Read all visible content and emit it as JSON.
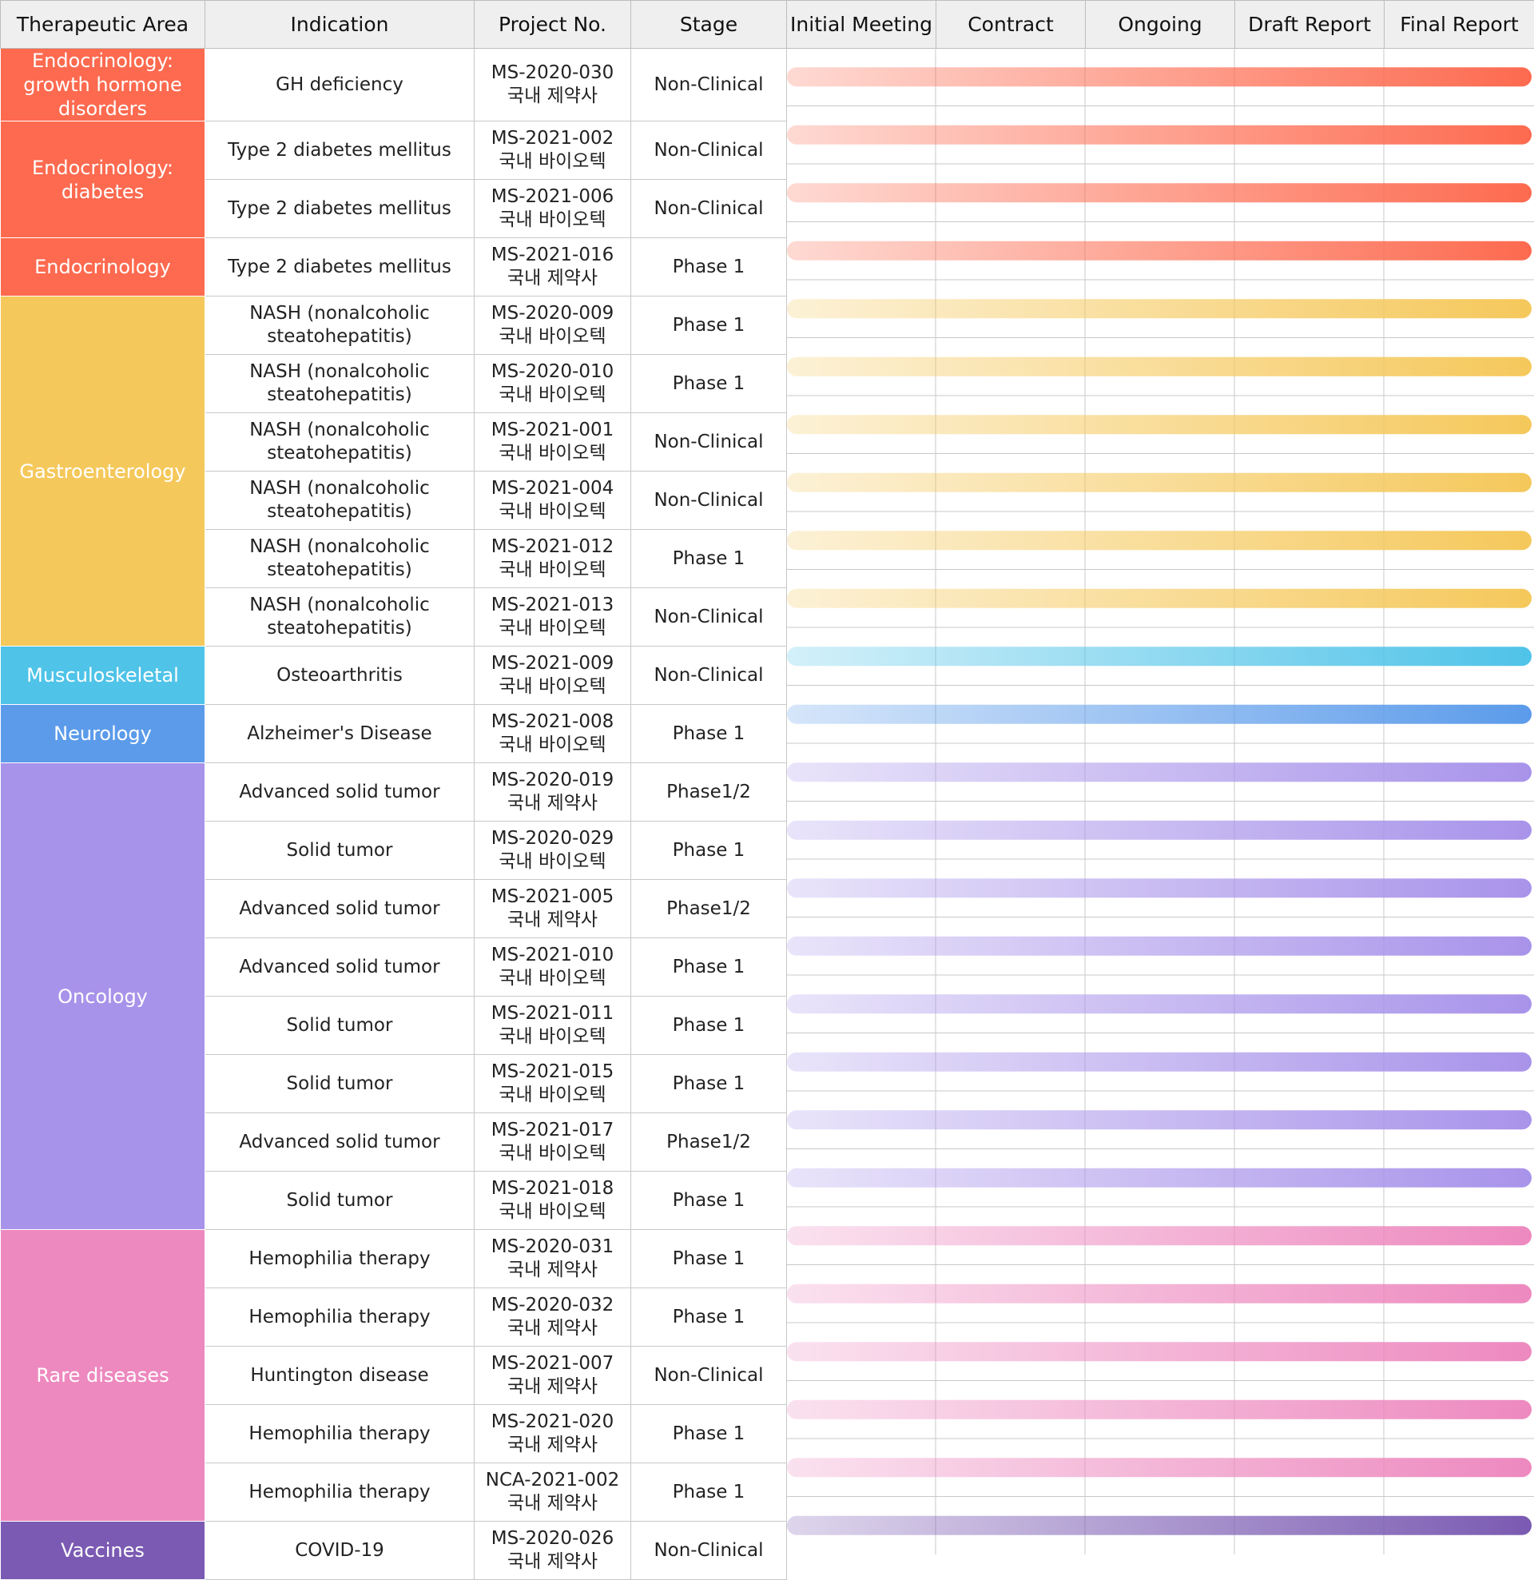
{
  "chart_data": {
    "type": "bar",
    "columns": [
      "Therapeutic Area",
      "Indication",
      "Project No.",
      "Stage"
    ],
    "phases": [
      "Initial Meeting",
      "Contract",
      "Ongoing",
      "Draft Report",
      "Final Report"
    ],
    "areas": [
      {
        "name": "Endocrinology: growth hormone disorders",
        "color": "#fd6a4f",
        "rows": 1
      },
      {
        "name": "Endocrinology: diabetes",
        "color": "#fd6a4f",
        "rows": 2
      },
      {
        "name": "Endocrinology",
        "color": "#fd6a4f",
        "rows": 1
      },
      {
        "name": "Gastroenterology",
        "color": "#f5c85b",
        "rows": 6
      },
      {
        "name": "Musculoskeletal",
        "color": "#4fc3e8",
        "rows": 1
      },
      {
        "name": "Neurology",
        "color": "#5b9bea",
        "rows": 1
      },
      {
        "name": "Oncology",
        "color": "#a893ea",
        "rows": 8
      },
      {
        "name": "Rare diseases",
        "color": "#ed89bf",
        "rows": 5
      },
      {
        "name": "Vaccines",
        "color": "#7a5ab2",
        "rows": 1
      }
    ],
    "rows": [
      {
        "indication": "GH deficiency",
        "project_no": "MS-2020-030",
        "sponsor": "국내 제약사",
        "stage": "Non-Clinical",
        "progress": "Final Report",
        "area": 0
      },
      {
        "indication": "Type 2 diabetes mellitus",
        "project_no": "MS-2021-002",
        "sponsor": "국내 바이오텍",
        "stage": "Non-Clinical",
        "progress": "Final Report",
        "area": 1
      },
      {
        "indication": "Type 2 diabetes mellitus",
        "project_no": "MS-2021-006",
        "sponsor": "국내 바이오텍",
        "stage": "Non-Clinical",
        "progress": "Final Report",
        "area": 1
      },
      {
        "indication": "Type 2 diabetes mellitus",
        "project_no": "MS-2021-016",
        "sponsor": "국내 제약사",
        "stage": "Phase 1",
        "progress": "Final Report",
        "area": 2
      },
      {
        "indication": "NASH (nonalcoholic steatohepatitis)",
        "project_no": "MS-2020-009",
        "sponsor": "국내 바이오텍",
        "stage": "Phase 1",
        "progress": "Final Report",
        "area": 3
      },
      {
        "indication": "NASH (nonalcoholic steatohepatitis)",
        "project_no": "MS-2020-010",
        "sponsor": "국내 바이오텍",
        "stage": "Phase 1",
        "progress": "Final Report",
        "area": 3
      },
      {
        "indication": "NASH (nonalcoholic steatohepatitis)",
        "project_no": "MS-2021-001",
        "sponsor": "국내 바이오텍",
        "stage": "Non-Clinical",
        "progress": "Final Report",
        "area": 3
      },
      {
        "indication": "NASH (nonalcoholic steatohepatitis)",
        "project_no": "MS-2021-004",
        "sponsor": "국내 바이오텍",
        "stage": "Non-Clinical",
        "progress": "Final Report",
        "area": 3
      },
      {
        "indication": "NASH (nonalcoholic steatohepatitis)",
        "project_no": "MS-2021-012",
        "sponsor": "국내 바이오텍",
        "stage": "Phase 1",
        "progress": "Final Report",
        "area": 3
      },
      {
        "indication": "NASH (nonalcoholic steatohepatitis)",
        "project_no": "MS-2021-013",
        "sponsor": "국내 바이오텍",
        "stage": "Non-Clinical",
        "progress": "Final Report",
        "area": 3
      },
      {
        "indication": "Osteoarthritis",
        "project_no": "MS-2021-009",
        "sponsor": "국내 바이오텍",
        "stage": "Non-Clinical",
        "progress": "Final Report",
        "area": 4
      },
      {
        "indication": "Alzheimer's Disease",
        "project_no": "MS-2021-008",
        "sponsor": "국내 바이오텍",
        "stage": "Phase 1",
        "progress": "Final Report",
        "area": 5
      },
      {
        "indication": "Advanced solid tumor",
        "project_no": "MS-2020-019",
        "sponsor": "국내 제약사",
        "stage": "Phase1/2",
        "progress": "Final Report",
        "area": 6
      },
      {
        "indication": "Solid tumor",
        "project_no": "MS-2020-029",
        "sponsor": "국내 바이오텍",
        "stage": "Phase 1",
        "progress": "Final Report",
        "area": 6
      },
      {
        "indication": "Advanced solid tumor",
        "project_no": "MS-2021-005",
        "sponsor": "국내 제약사",
        "stage": "Phase1/2",
        "progress": "Final Report",
        "area": 6
      },
      {
        "indication": "Advanced solid tumor",
        "project_no": "MS-2021-010",
        "sponsor": "국내 바이오텍",
        "stage": "Phase 1",
        "progress": "Final Report",
        "area": 6
      },
      {
        "indication": "Solid tumor",
        "project_no": "MS-2021-011",
        "sponsor": "국내 바이오텍",
        "stage": "Phase 1",
        "progress": "Final Report",
        "area": 6
      },
      {
        "indication": "Solid tumor",
        "project_no": "MS-2021-015",
        "sponsor": "국내 바이오텍",
        "stage": "Phase 1",
        "progress": "Final Report",
        "area": 6
      },
      {
        "indication": "Advanced solid tumor",
        "project_no": "MS-2021-017",
        "sponsor": "국내 바이오텍",
        "stage": "Phase1/2",
        "progress": "Final Report",
        "area": 6
      },
      {
        "indication": "Solid tumor",
        "project_no": "MS-2021-018",
        "sponsor": "국내 바이오텍",
        "stage": "Phase 1",
        "progress": "Final Report",
        "area": 6
      },
      {
        "indication": "Hemophilia therapy",
        "project_no": "MS-2020-031",
        "sponsor": "국내 제약사",
        "stage": "Phase 1",
        "progress": "Final Report",
        "area": 7
      },
      {
        "indication": "Hemophilia therapy",
        "project_no": "MS-2020-032",
        "sponsor": "국내 제약사",
        "stage": "Phase 1",
        "progress": "Final Report",
        "area": 7
      },
      {
        "indication": "Huntington disease",
        "project_no": "MS-2021-007",
        "sponsor": "국내 제약사",
        "stage": "Non-Clinical",
        "progress": "Final Report",
        "area": 7
      },
      {
        "indication": "Hemophilia therapy",
        "project_no": "MS-2021-020",
        "sponsor": "국내 제약사",
        "stage": "Phase 1",
        "progress": "Final Report",
        "area": 7
      },
      {
        "indication": "Hemophilia therapy",
        "project_no": "NCA-2021-002",
        "sponsor": "국내 제약사",
        "stage": "Phase 1",
        "progress": "Final Report",
        "area": 7
      },
      {
        "indication": "COVID-19",
        "project_no": "MS-2020-026",
        "sponsor": "국내 제약사",
        "stage": "Non-Clinical",
        "progress": "Final Report",
        "area": 8
      }
    ]
  }
}
